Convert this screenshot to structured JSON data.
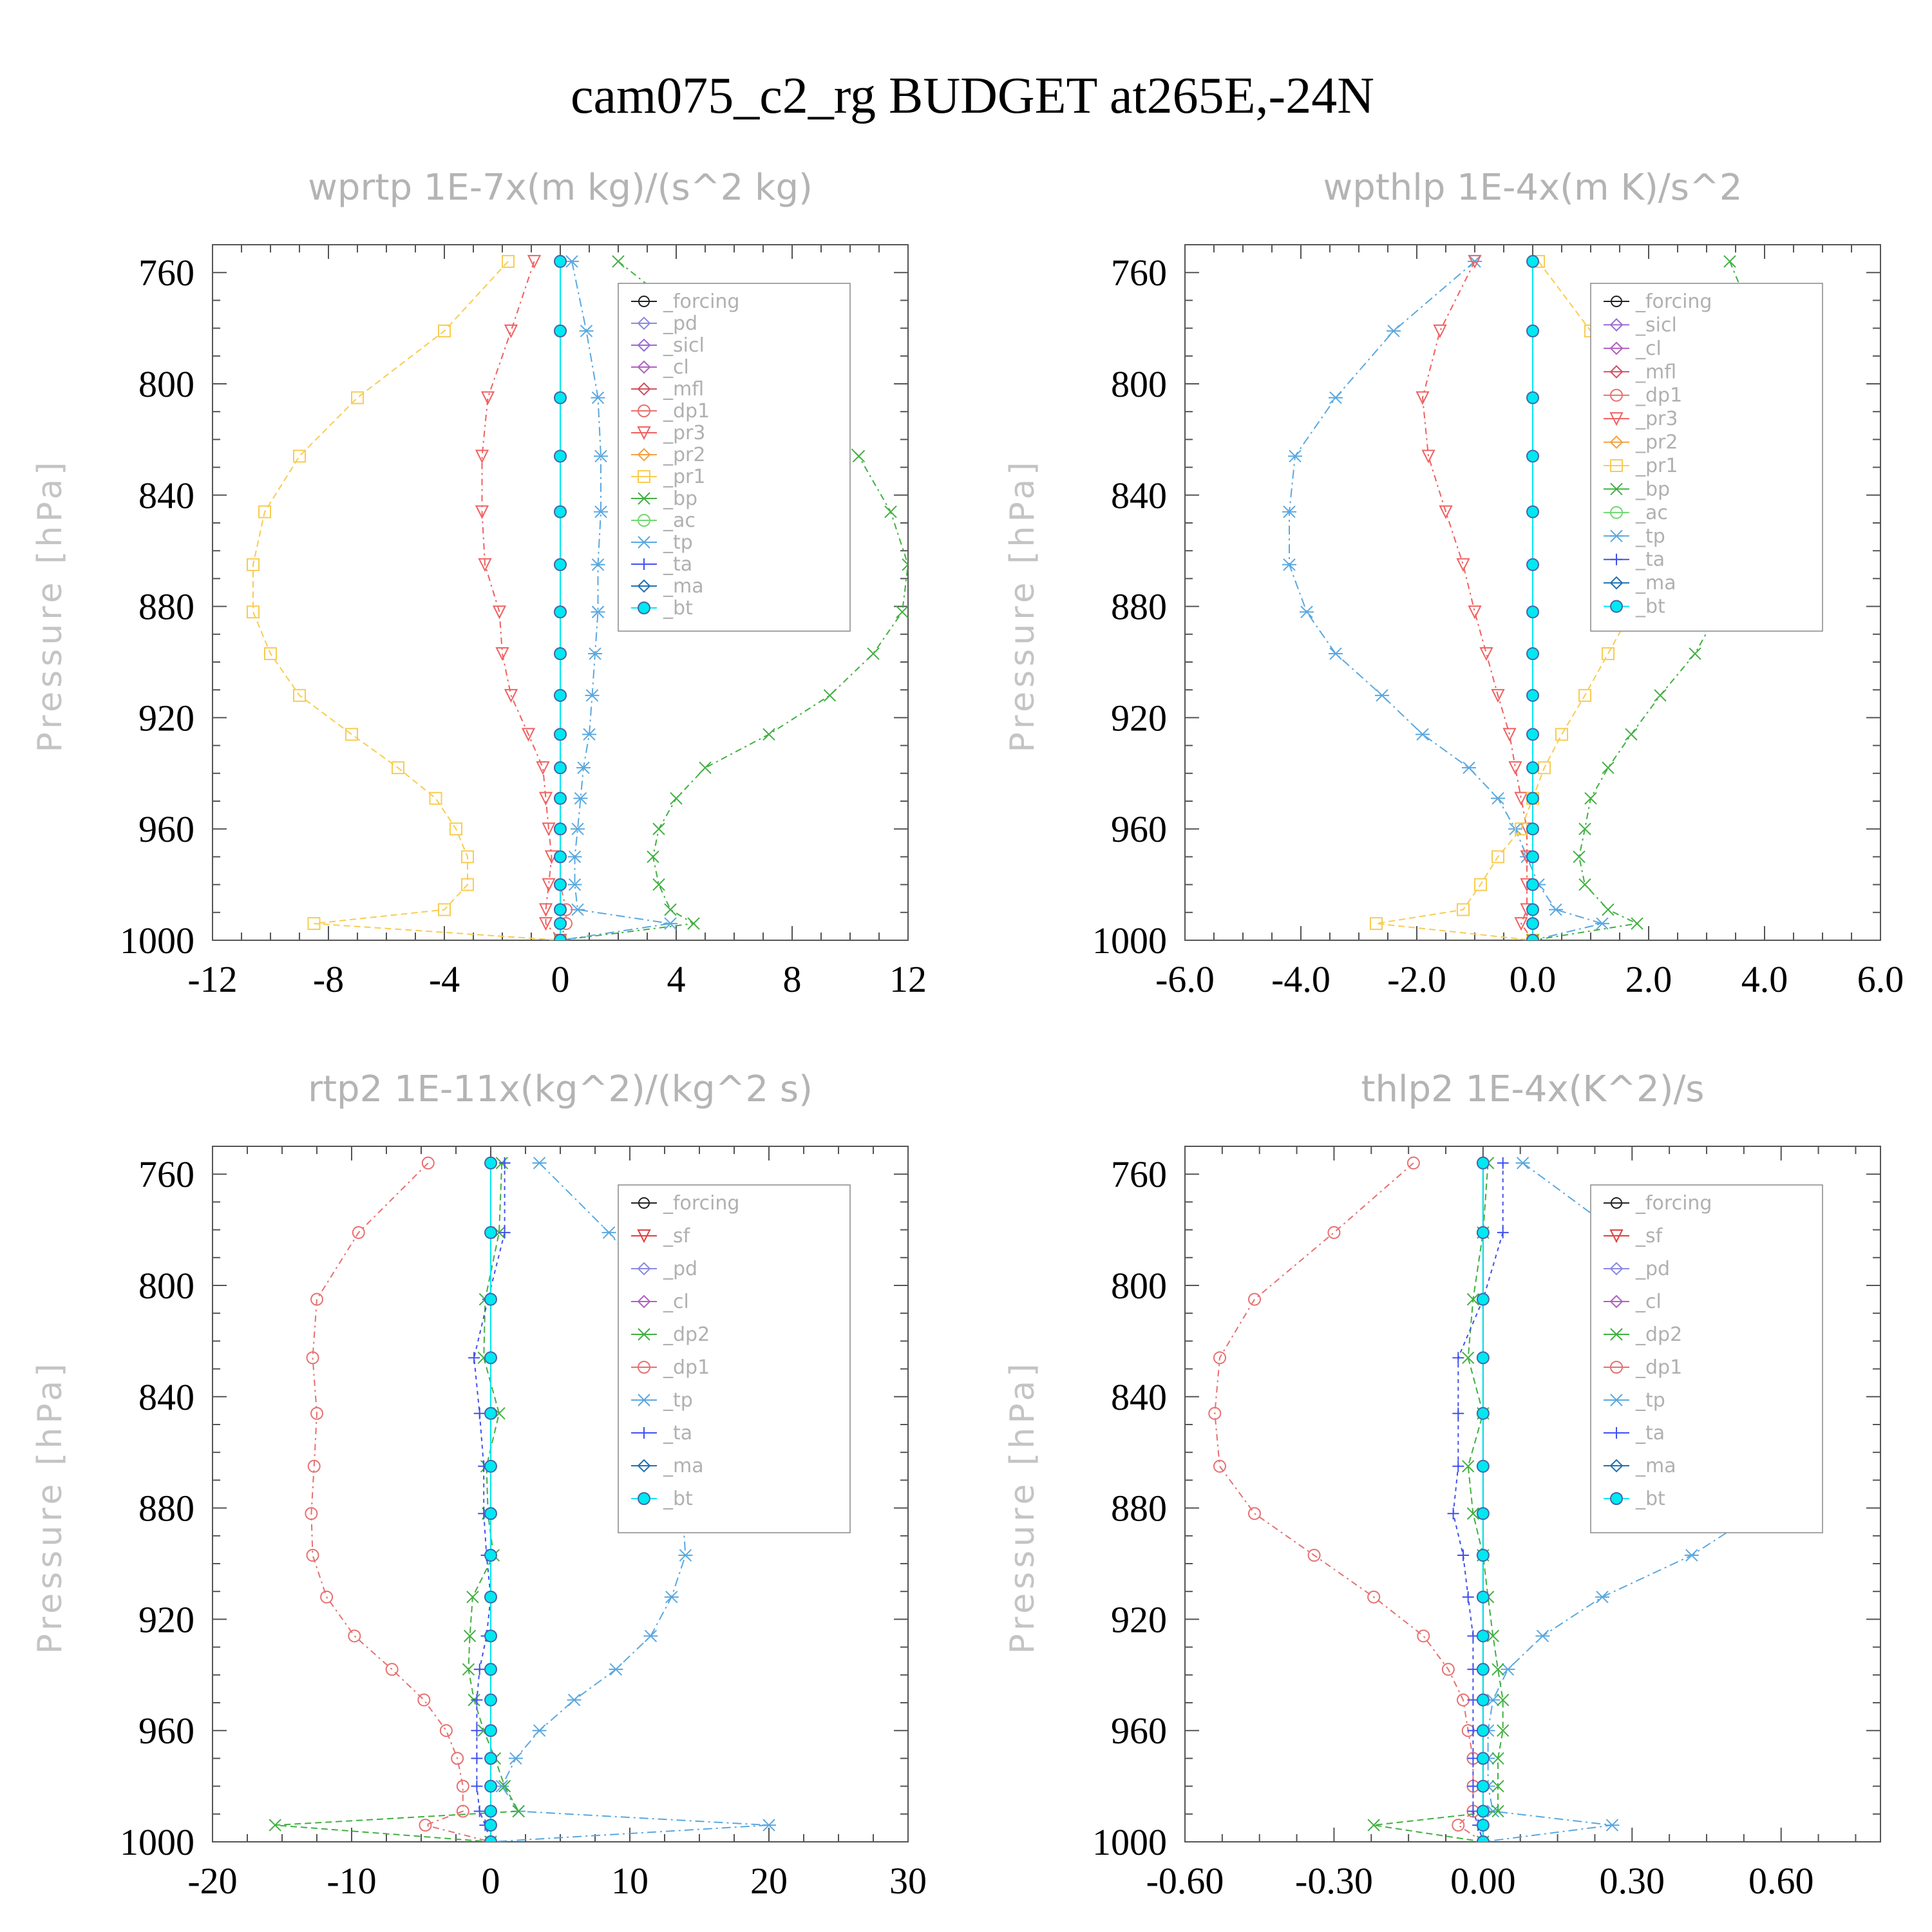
{
  "figure": {
    "title": "cam075_c2_rg  BUDGET at265E,-24N"
  },
  "colors": {
    "_forcing": "#222222",
    "_pd": "#8a8ae0",
    "_sicl": "#9a6ad0",
    "_cl": "#b060c0",
    "_mfl": "#d05060",
    "_dp1": "#e87070",
    "_pr3": "#f06060",
    "_pr2": "#f4a040",
    "_pr1": "#f8cc50",
    "_bp": "#40b040",
    "_ac": "#70d870",
    "_tp": "#5aa8e0",
    "_ta": "#4050f0",
    "_ma": "#2070b0",
    "_bt": "#00e8f0",
    "_sf": "#e04040",
    "_dp2": "#40b040"
  },
  "chart_data": [
    {
      "type": "line",
      "title": "wprtp  1E-7x(m kg)/(s^2 kg)",
      "ylabel": "Pressure [hPa]",
      "xlim": [
        -12,
        12
      ],
      "ylim": [
        1000,
        750
      ],
      "xticks": [
        "-12",
        "-8",
        "-4",
        "0",
        "4",
        "8",
        "12"
      ],
      "yticks": [
        "760",
        "800",
        "840",
        "880",
        "920",
        "960",
        "1000"
      ],
      "legend": [
        "_forcing",
        "_pd",
        "_sicl",
        "_cl",
        "_mfl",
        "_dp1",
        "_pr3",
        "_pr2",
        "_pr1",
        "_bp",
        "_ac",
        "_tp",
        "_ta",
        "_ma",
        "_bt"
      ],
      "pressure": [
        756,
        781,
        805,
        826,
        846,
        865,
        882,
        897,
        912,
        926,
        938,
        949,
        960,
        970,
        980,
        989,
        994,
        1000
      ],
      "series": [
        {
          "name": "_pr1",
          "values": [
            -1.8,
            -4.0,
            -7.0,
            -9.0,
            -10.2,
            -10.6,
            -10.6,
            -10.0,
            -9.0,
            -7.2,
            -5.6,
            -4.3,
            -3.6,
            -3.2,
            -3.2,
            -4.0,
            -8.5,
            0.0
          ]
        },
        {
          "name": "_pr3",
          "values": [
            -0.9,
            -1.7,
            -2.5,
            -2.7,
            -2.7,
            -2.6,
            -2.1,
            -2.0,
            -1.7,
            -1.1,
            -0.6,
            -0.5,
            -0.4,
            -0.3,
            -0.4,
            -0.5,
            -0.5,
            0.0
          ]
        },
        {
          "name": "_bp",
          "values": [
            2.0,
            5.0,
            8.3,
            10.3,
            11.4,
            12.0,
            11.8,
            10.8,
            9.3,
            7.2,
            5.0,
            4.0,
            3.4,
            3.2,
            3.4,
            3.8,
            4.6,
            0.0
          ]
        },
        {
          "name": "_tp",
          "values": [
            0.4,
            0.9,
            1.3,
            1.4,
            1.4,
            1.3,
            1.3,
            1.2,
            1.1,
            1.0,
            0.8,
            0.7,
            0.6,
            0.5,
            0.5,
            0.6,
            3.8,
            0.0
          ]
        },
        {
          "name": "_dp1",
          "values": [
            0,
            0,
            0,
            0,
            0,
            0,
            0,
            0,
            0,
            0,
            0,
            0,
            0,
            0,
            0,
            0.2,
            0.2,
            0.0
          ]
        },
        {
          "name": "_forcing",
          "values": [
            0,
            0,
            0,
            0,
            0,
            0,
            0,
            0,
            0,
            0,
            0,
            0,
            0,
            0,
            0,
            0,
            0,
            0
          ]
        },
        {
          "name": "_bt",
          "values": [
            0,
            0,
            0,
            0,
            0,
            0,
            0,
            0,
            0,
            0,
            0,
            0,
            0,
            0,
            0,
            0,
            0,
            0
          ]
        }
      ]
    },
    {
      "type": "line",
      "title": "wpthlp  1E-4x(m K)/s^2",
      "ylabel": "Pressure [hPa]",
      "xlim": [
        -6.0,
        6.0
      ],
      "ylim": [
        1000,
        750
      ],
      "xticks": [
        "-6.0",
        "-4.0",
        "-2.0",
        "0.0",
        "2.0",
        "4.0",
        "6.0"
      ],
      "yticks": [
        "760",
        "800",
        "840",
        "880",
        "920",
        "960",
        "1000"
      ],
      "legend": [
        "_forcing",
        "_sicl",
        "_cl",
        "_mfl",
        "_dp1",
        "_pr3",
        "_pr2",
        "_pr1",
        "_bp",
        "_ac",
        "_tp",
        "_ta",
        "_ma",
        "_bt"
      ],
      "pressure": [
        756,
        781,
        805,
        826,
        846,
        865,
        882,
        897,
        912,
        926,
        938,
        949,
        960,
        970,
        980,
        989,
        994,
        1000
      ],
      "series": [
        {
          "name": "_tp",
          "values": [
            -1.0,
            -2.4,
            -3.4,
            -4.1,
            -4.2,
            -4.2,
            -3.9,
            -3.4,
            -2.6,
            -1.9,
            -1.1,
            -0.6,
            -0.3,
            -0.1,
            0.1,
            0.4,
            1.2,
            0.0
          ]
        },
        {
          "name": "_pr3",
          "values": [
            -1.0,
            -1.6,
            -1.9,
            -1.8,
            -1.5,
            -1.2,
            -1.0,
            -0.8,
            -0.6,
            -0.4,
            -0.3,
            -0.2,
            -0.1,
            -0.1,
            -0.1,
            -0.1,
            -0.2,
            0.0
          ]
        },
        {
          "name": "_pr1",
          "values": [
            0.1,
            1.0,
            1.6,
            1.9,
            2.0,
            1.9,
            1.7,
            1.3,
            0.9,
            0.5,
            0.2,
            0.0,
            -0.2,
            -0.6,
            -0.9,
            -1.2,
            -2.7,
            0.0
          ]
        },
        {
          "name": "_bp",
          "values": [
            3.4,
            3.9,
            4.1,
            4.2,
            4.1,
            3.6,
            3.2,
            2.8,
            2.2,
            1.7,
            1.3,
            1.0,
            0.9,
            0.8,
            0.9,
            1.3,
            1.8,
            0.0
          ]
        },
        {
          "name": "_forcing",
          "values": [
            0,
            0,
            0,
            0,
            0,
            0,
            0,
            0,
            0,
            0,
            0,
            0,
            0,
            0,
            0,
            0,
            0,
            0
          ]
        },
        {
          "name": "_bt",
          "values": [
            0,
            0,
            0,
            0,
            0,
            0,
            0,
            0,
            0,
            0,
            0,
            0,
            0,
            0,
            0,
            0,
            0,
            0
          ]
        }
      ]
    },
    {
      "type": "line",
      "title": "rtp2  1E-11x(kg^2)/(kg^2 s)",
      "ylabel": "Pressure [hPa]",
      "xlim": [
        -20,
        30
      ],
      "ylim": [
        1000,
        750
      ],
      "xticks": [
        "-20",
        "-10",
        "0",
        "10",
        "20",
        "30"
      ],
      "yticks": [
        "760",
        "800",
        "840",
        "880",
        "920",
        "960",
        "1000"
      ],
      "legend": [
        "_forcing",
        "_sf",
        "_pd",
        "_cl",
        "_dp2",
        "_dp1",
        "_tp",
        "_ta",
        "_ma",
        "_bt"
      ],
      "pressure": [
        756,
        781,
        805,
        826,
        846,
        865,
        882,
        897,
        912,
        926,
        938,
        949,
        960,
        970,
        980,
        989,
        994,
        1000
      ],
      "series": [
        {
          "name": "_dp1",
          "values": [
            -4.5,
            -9.5,
            -12.5,
            -12.8,
            -12.5,
            -12.7,
            -12.9,
            -12.8,
            -11.8,
            -9.8,
            -7.1,
            -4.8,
            -3.2,
            -2.4,
            -2.0,
            -2.0,
            -4.7,
            0.0
          ]
        },
        {
          "name": "_tp",
          "values": [
            3.5,
            8.5,
            12.5,
            13.3,
            13.0,
            13.2,
            13.8,
            14.0,
            13.0,
            11.5,
            9.0,
            6.0,
            3.5,
            1.8,
            0.8,
            2.0,
            20.0,
            0.0
          ]
        },
        {
          "name": "_dp2",
          "values": [
            0.8,
            0.6,
            -0.4,
            -0.5,
            0.6,
            -0.3,
            -0.2,
            0.2,
            -1.3,
            -1.5,
            -1.6,
            -1.2,
            -0.5,
            0.3,
            1.0,
            2.0,
            -15.5,
            0.0
          ]
        },
        {
          "name": "_ta",
          "values": [
            1.0,
            1.0,
            -0.2,
            -1.2,
            -0.8,
            -0.5,
            -0.5,
            -0.3,
            0.0,
            -0.3,
            -0.8,
            -1.0,
            -1.0,
            -1.0,
            -1.0,
            -0.8,
            -0.4,
            0.0
          ]
        },
        {
          "name": "_forcing",
          "values": [
            0,
            0,
            0,
            0,
            0,
            0,
            0,
            0,
            0,
            0,
            0,
            0,
            0,
            0,
            0,
            0,
            0,
            0
          ]
        },
        {
          "name": "_bt",
          "values": [
            0,
            0,
            0,
            0,
            0,
            0,
            0,
            0,
            0,
            0,
            0,
            0,
            0,
            0,
            0,
            0,
            0,
            0
          ]
        }
      ]
    },
    {
      "type": "line",
      "title": "thlp2  1E-4x(K^2)/s",
      "ylabel": "Pressure [hPa]",
      "xlim": [
        -0.6,
        0.8
      ],
      "ylim": [
        1000,
        750
      ],
      "xticks": [
        "-0.60",
        "-0.30",
        "0.00",
        "0.30",
        "0.60"
      ],
      "yticks": [
        "760",
        "800",
        "840",
        "880",
        "920",
        "960",
        "1000"
      ],
      "legend": [
        "_forcing",
        "_sf",
        "_pd",
        "_cl",
        "_dp2",
        "_dp1",
        "_tp",
        "_ta",
        "_ma",
        "_bt"
      ],
      "pressure": [
        756,
        781,
        805,
        826,
        846,
        865,
        882,
        897,
        912,
        926,
        938,
        949,
        960,
        970,
        980,
        989,
        994,
        1000
      ],
      "series": [
        {
          "name": "_dp1",
          "values": [
            -0.14,
            -0.3,
            -0.46,
            -0.53,
            -0.54,
            -0.53,
            -0.46,
            -0.34,
            -0.22,
            -0.12,
            -0.07,
            -0.04,
            -0.03,
            -0.02,
            -0.02,
            -0.02,
            -0.05,
            0.0
          ]
        },
        {
          "name": "_tp",
          "values": [
            0.08,
            0.27,
            0.48,
            0.6,
            0.61,
            0.6,
            0.55,
            0.42,
            0.24,
            0.12,
            0.05,
            0.02,
            0.01,
            0.01,
            0.01,
            0.02,
            0.26,
            0.0
          ]
        },
        {
          "name": "_dp2",
          "values": [
            0.01,
            0.0,
            -0.02,
            -0.03,
            0.0,
            -0.03,
            -0.02,
            0.0,
            0.01,
            0.02,
            0.03,
            0.04,
            0.04,
            0.03,
            0.03,
            0.03,
            -0.22,
            0.0
          ]
        },
        {
          "name": "_ta",
          "values": [
            0.04,
            0.04,
            0.0,
            -0.05,
            -0.05,
            -0.05,
            -0.06,
            -0.04,
            -0.03,
            -0.02,
            -0.02,
            -0.02,
            -0.02,
            -0.02,
            -0.02,
            -0.02,
            -0.01,
            0.0
          ]
        },
        {
          "name": "_forcing",
          "values": [
            0,
            0,
            0,
            0,
            0,
            0,
            0,
            0,
            0,
            0,
            0,
            0,
            0,
            0,
            0,
            0,
            0,
            0
          ]
        },
        {
          "name": "_bt",
          "values": [
            0,
            0,
            0,
            0,
            0,
            0,
            0,
            0,
            0,
            0,
            0,
            0,
            0,
            0,
            0,
            0,
            0,
            0
          ]
        }
      ]
    }
  ]
}
